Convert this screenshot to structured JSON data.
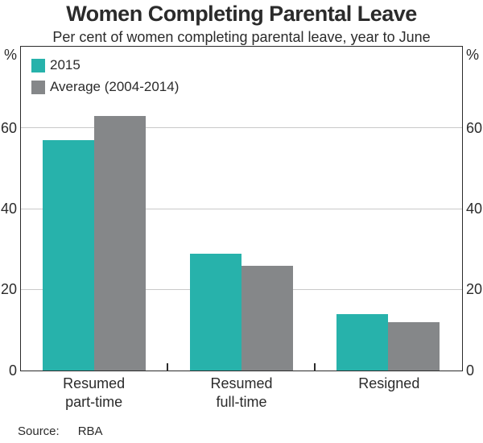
{
  "page": {
    "source_label": "Source:",
    "source_value": "RBA"
  },
  "chart_data": {
    "type": "bar",
    "title": "Women Completing Parental Leave",
    "subtitle": "Per cent of women completing parental leave, year to June",
    "categories": [
      "Resumed\npart-time",
      "Resumed\nfull-time",
      "Resigned"
    ],
    "series": [
      {
        "name": "2015",
        "color": "#27B2AB",
        "values": [
          57,
          29,
          14
        ]
      },
      {
        "name": "Average (2004-2014)",
        "color": "#858789",
        "values": [
          63,
          26,
          12
        ]
      }
    ],
    "unit_label": "%",
    "ylim": [
      0,
      80
    ],
    "yticks": [
      0,
      20,
      40,
      60
    ],
    "grid": true,
    "legend_position": "top-left",
    "axis_color": "#2B2B2B",
    "gridline_color": "#C9C9C9"
  }
}
